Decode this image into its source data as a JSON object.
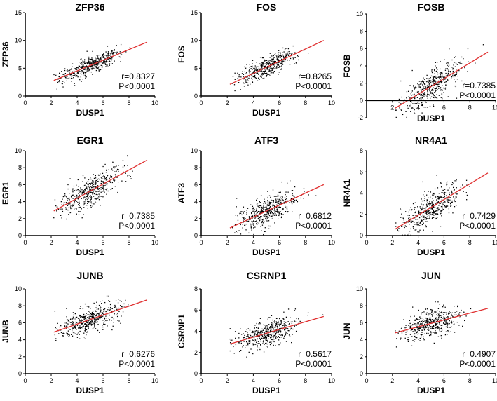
{
  "colors": {
    "points": "#000000",
    "fit_line": "#e03030",
    "axis": "#000000"
  },
  "chart_data": [
    {
      "type": "scatter",
      "title": "ZFP36",
      "xlabel": "DUSP1",
      "ylabel": "ZFP36",
      "xlim": [
        0,
        10
      ],
      "ylim": [
        0,
        15
      ],
      "xticks": [
        "0",
        "2",
        "4",
        "6",
        "8",
        "10"
      ],
      "yticks": [
        "0",
        "5",
        "10",
        "15"
      ],
      "fit_line": {
        "x": [
          2.2,
          9.4
        ],
        "y": [
          2.8,
          9.7
        ]
      },
      "r_text": "r=0.8327",
      "p_text": "P<0.0001",
      "r": 0.8327
    },
    {
      "type": "scatter",
      "title": "FOS",
      "xlabel": "DUSP1",
      "ylabel": "FOS",
      "xlim": [
        0,
        10
      ],
      "ylim": [
        0,
        15
      ],
      "xticks": [
        "0",
        "2",
        "4",
        "6",
        "8",
        "10"
      ],
      "yticks": [
        "0",
        "5",
        "10",
        "15"
      ],
      "fit_line": {
        "x": [
          2.2,
          9.4
        ],
        "y": [
          2.1,
          10.0
        ]
      },
      "r_text": "r=0.8265",
      "p_text": "P<0.0001",
      "r": 0.8265
    },
    {
      "type": "scatter",
      "title": "FOSB",
      "xlabel": "DUSP1",
      "ylabel": "FOSB",
      "xlim": [
        0,
        10
      ],
      "ylim": [
        -2,
        10
      ],
      "xticks": [
        "2",
        "4",
        "6",
        "8",
        "10"
      ],
      "yticks": [
        "-2",
        "0",
        "2",
        "4",
        "6",
        "8",
        "10"
      ],
      "fit_line": {
        "x": [
          2.2,
          9.4
        ],
        "y": [
          -0.9,
          5.6
        ]
      },
      "r_text": "r=0.7385",
      "p_text": "P<0.0001",
      "r": 0.7385
    },
    {
      "type": "scatter",
      "title": "EGR1",
      "xlabel": "DUSP1",
      "ylabel": "EGR1",
      "xlim": [
        0,
        10
      ],
      "ylim": [
        0,
        10
      ],
      "xticks": [
        "0",
        "2",
        "4",
        "6",
        "8",
        "10"
      ],
      "yticks": [
        "0",
        "2",
        "4",
        "6",
        "8",
        "10"
      ],
      "fit_line": {
        "x": [
          2.2,
          9.4
        ],
        "y": [
          2.9,
          8.9
        ]
      },
      "r_text": "r=0.7385",
      "p_text": "P<0.0001",
      "r": 0.7385
    },
    {
      "type": "scatter",
      "title": "ATF3",
      "xlabel": "DUSP1",
      "ylabel": "ATF3",
      "xlim": [
        0,
        10
      ],
      "ylim": [
        0,
        10
      ],
      "xticks": [
        "0",
        "2",
        "4",
        "6",
        "8",
        "10"
      ],
      "yticks": [
        "0",
        "2",
        "4",
        "6",
        "8",
        "10"
      ],
      "fit_line": {
        "x": [
          2.2,
          9.4
        ],
        "y": [
          0.9,
          6.0
        ]
      },
      "r_text": "r=0.6812",
      "p_text": "P<0.0001",
      "r": 0.6812
    },
    {
      "type": "scatter",
      "title": "NR4A1",
      "xlabel": "DUSP1",
      "ylabel": "NR4A1",
      "xlim": [
        0,
        10
      ],
      "ylim": [
        0,
        8
      ],
      "xticks": [
        "0",
        "2",
        "4",
        "6",
        "8",
        "10"
      ],
      "yticks": [
        "0",
        "2",
        "4",
        "6",
        "8"
      ],
      "fit_line": {
        "x": [
          2.2,
          9.4
        ],
        "y": [
          0.6,
          5.9
        ]
      },
      "r_text": "r=0.7429",
      "p_text": "P<0.0001",
      "r": 0.7429
    },
    {
      "type": "scatter",
      "title": "JUNB",
      "xlabel": "DUSP1",
      "ylabel": "JUNB",
      "xlim": [
        0,
        10
      ],
      "ylim": [
        0,
        10
      ],
      "xticks": [
        "0",
        "2",
        "4",
        "6",
        "8",
        "10"
      ],
      "yticks": [
        "0",
        "2",
        "4",
        "6",
        "8",
        "10"
      ],
      "fit_line": {
        "x": [
          2.2,
          9.4
        ],
        "y": [
          4.9,
          8.7
        ]
      },
      "r_text": "r=0.6276",
      "p_text": "P<0.0001",
      "r": 0.6276
    },
    {
      "type": "scatter",
      "title": "CSRNP1",
      "xlabel": "DUSP1",
      "ylabel": "CSRNP1",
      "xlim": [
        0,
        10
      ],
      "ylim": [
        0,
        8
      ],
      "xticks": [
        "0",
        "2",
        "4",
        "6",
        "8",
        "10"
      ],
      "yticks": [
        "0",
        "2",
        "4",
        "6",
        "8"
      ],
      "fit_line": {
        "x": [
          2.2,
          9.4
        ],
        "y": [
          2.8,
          5.4
        ]
      },
      "r_text": "r=0.5617",
      "p_text": "P<0.0001",
      "r": 0.5617
    },
    {
      "type": "scatter",
      "title": "JUN",
      "xlabel": "DUSP1",
      "ylabel": "JUN",
      "xlim": [
        0,
        10
      ],
      "ylim": [
        0,
        10
      ],
      "xticks": [
        "0",
        "2",
        "4",
        "6",
        "8",
        "10"
      ],
      "yticks": [
        "0",
        "2",
        "4",
        "6",
        "8",
        "10"
      ],
      "fit_line": {
        "x": [
          2.2,
          9.4
        ],
        "y": [
          4.8,
          7.7
        ]
      },
      "r_text": "r=0.4907",
      "p_text": "P<0.0001",
      "r": 0.4907
    }
  ]
}
